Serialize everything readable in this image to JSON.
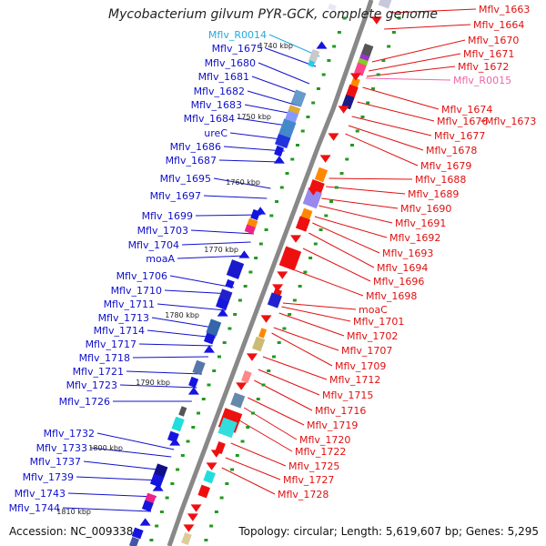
{
  "title": "Mycobacterium gilvum PYR-GCK, complete genome",
  "footer": {
    "accession": "Accession: NC_009338",
    "summary": "Topology: circular; Length: 5,619,607 bp; Genes: 5,295"
  },
  "colors": {
    "backbone": "#888888",
    "forward_label": "#1010cc",
    "reverse_label": "#e01010",
    "rna_forward_label": "#22aadd",
    "rna_reverse_label": "#ee66aa",
    "forward_gene": "#1515e0",
    "reverse_gene": "#ee1010",
    "tick": "#229922"
  },
  "kbp_ticks": [
    "1740 kbp",
    "1750 kbp",
    "1760 kbp",
    "1770 kbp",
    "1780 kbp",
    "1790 kbp",
    "1800 kbp",
    "1810 kbp"
  ],
  "left_labels": [
    {
      "text": "Mflv_R0014",
      "type": "rna"
    },
    {
      "text": "Mflv_1675"
    },
    {
      "text": "Mflv_1680"
    },
    {
      "text": "Mflv_1681"
    },
    {
      "text": "Mflv_1682"
    },
    {
      "text": "Mflv_1683"
    },
    {
      "text": "Mflv_1684"
    },
    {
      "text": "ureC"
    },
    {
      "text": "Mflv_1686"
    },
    {
      "text": "Mflv_1687"
    },
    {
      "text": "Mflv_1695"
    },
    {
      "text": "Mflv_1697"
    },
    {
      "text": "Mflv_1699"
    },
    {
      "text": "Mflv_1703"
    },
    {
      "text": "Mflv_1704"
    },
    {
      "text": "moaA"
    },
    {
      "text": "Mflv_1706"
    },
    {
      "text": "Mflv_1710"
    },
    {
      "text": "Mflv_1711"
    },
    {
      "text": "Mflv_1713"
    },
    {
      "text": "Mflv_1714"
    },
    {
      "text": "Mflv_1717"
    },
    {
      "text": "Mflv_1718"
    },
    {
      "text": "Mflv_1721"
    },
    {
      "text": "Mflv_1723"
    },
    {
      "text": "Mflv_1726"
    },
    {
      "text": "Mflv_1732"
    },
    {
      "text": "Mflv_1733"
    },
    {
      "text": "Mflv_1737"
    },
    {
      "text": "Mflv_1739"
    },
    {
      "text": "Mflv_1743"
    },
    {
      "text": "Mflv_1744"
    }
  ],
  "right_labels": [
    {
      "text": "Mflv_1663"
    },
    {
      "text": "Mflv_1664"
    },
    {
      "text": "Mflv_1670"
    },
    {
      "text": "Mflv_1671"
    },
    {
      "text": "Mflv_1672"
    },
    {
      "text": "Mflv_R0015",
      "type": "rna"
    },
    {
      "text": "Mflv_1674"
    },
    {
      "text": "Mflv_1676"
    },
    {
      "text": "Mflv_1673"
    },
    {
      "text": "Mflv_1677"
    },
    {
      "text": "Mflv_1678"
    },
    {
      "text": "Mflv_1679"
    },
    {
      "text": "Mflv_1688"
    },
    {
      "text": "Mflv_1689"
    },
    {
      "text": "Mflv_1690"
    },
    {
      "text": "Mflv_1691"
    },
    {
      "text": "Mflv_1692"
    },
    {
      "text": "Mflv_1693"
    },
    {
      "text": "Mflv_1694"
    },
    {
      "text": "Mflv_1696"
    },
    {
      "text": "Mflv_1698"
    },
    {
      "text": "moaC"
    },
    {
      "text": "Mflv_1701"
    },
    {
      "text": "Mflv_1702"
    },
    {
      "text": "Mflv_1707"
    },
    {
      "text": "Mflv_1709"
    },
    {
      "text": "Mflv_1712"
    },
    {
      "text": "Mflv_1715"
    },
    {
      "text": "Mflv_1716"
    },
    {
      "text": "Mflv_1719"
    },
    {
      "text": "Mflv_1720"
    },
    {
      "text": "Mflv_1722"
    },
    {
      "text": "Mflv_1725"
    },
    {
      "text": "Mflv_1727"
    },
    {
      "text": "Mflv_1728"
    }
  ]
}
